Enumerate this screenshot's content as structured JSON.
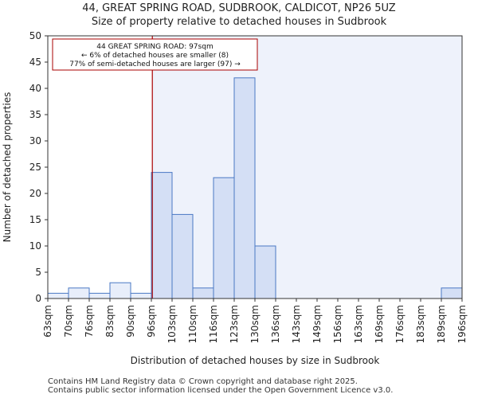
{
  "title_line1": "44, GREAT SPRING ROAD, SUDBROOK, CALDICOT, NP26 5UZ",
  "title_line2": "Size of property relative to detached houses in Sudbrook",
  "footer_line1": "Contains HM Land Registry data © Crown copyright and database right 2025.",
  "footer_line2": "Contains public sector information licensed under the Open Government Licence v3.0.",
  "chart_data": {
    "type": "bar",
    "xlabel": "Distribution of detached houses by size in Sudbrook",
    "ylabel": "Number of detached properties",
    "ylim": [
      0,
      50
    ],
    "yticks": [
      0,
      5,
      10,
      15,
      20,
      25,
      30,
      35,
      40,
      45,
      50
    ],
    "x_tick_labels": [
      "63sqm",
      "70sqm",
      "76sqm",
      "83sqm",
      "90sqm",
      "96sqm",
      "103sqm",
      "110sqm",
      "116sqm",
      "123sqm",
      "130sqm",
      "136sqm",
      "143sqm",
      "149sqm",
      "156sqm",
      "163sqm",
      "169sqm",
      "176sqm",
      "183sqm",
      "189sqm",
      "196sqm"
    ],
    "values": [
      1,
      2,
      1,
      3,
      1,
      24,
      16,
      2,
      23,
      42,
      10,
      0,
      0,
      0,
      0,
      0,
      0,
      0,
      0,
      2
    ],
    "bar_fill_default": "#e8eefa",
    "bar_fill_highlight": "#d4dff5",
    "bar_stroke": "#4a78c4",
    "highlight_region_fill": "#eef2fb",
    "property_line": {
      "value_sqm": 97,
      "color": "#aa0000"
    },
    "annotation": {
      "lines": [
        "44 GREAT SPRING ROAD: 97sqm",
        "← 6% of detached houses are smaller (8)",
        "77% of semi-detached houses are larger (97) →"
      ],
      "border_color": "#aa0000"
    },
    "grid": false
  }
}
